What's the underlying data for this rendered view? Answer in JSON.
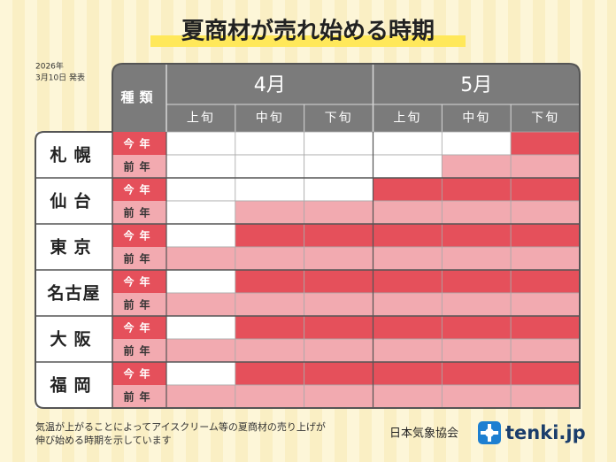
{
  "header": {
    "title": "夏商材が売れ始める時期",
    "date_line1": "2026年",
    "date_line2": "3月10日 発表"
  },
  "table": {
    "type_header": "種類",
    "months": [
      {
        "label": "4月",
        "periods": [
          "上旬",
          "中旬",
          "下旬"
        ]
      },
      {
        "label": "5月",
        "periods": [
          "上旬",
          "中旬",
          "下旬"
        ]
      }
    ],
    "rows": [
      {
        "city": "札幌",
        "this_year": {
          "label": "今年",
          "cells": [
            "#ffffff",
            "#ffffff",
            "#ffffff",
            "#ffffff",
            "#ffffff",
            "#e5505b"
          ]
        },
        "last_year": {
          "label": "前年",
          "cells": [
            "#ffffff",
            "#ffffff",
            "#ffffff",
            "#ffffff",
            "#f2aab0",
            "#f2aab0"
          ]
        }
      },
      {
        "city": "仙台",
        "this_year": {
          "label": "今年",
          "cells": [
            "#ffffff",
            "#ffffff",
            "#ffffff",
            "#e5505b",
            "#e5505b",
            "#e5505b"
          ]
        },
        "last_year": {
          "label": "前年",
          "cells": [
            "#ffffff",
            "#f2aab0",
            "#f2aab0",
            "#f2aab0",
            "#f2aab0",
            "#f2aab0"
          ]
        }
      },
      {
        "city": "東京",
        "this_year": {
          "label": "今年",
          "cells": [
            "#ffffff",
            "#e5505b",
            "#e5505b",
            "#e5505b",
            "#e5505b",
            "#e5505b"
          ]
        },
        "last_year": {
          "label": "前年",
          "cells": [
            "#f2aab0",
            "#f2aab0",
            "#f2aab0",
            "#f2aab0",
            "#f2aab0",
            "#f2aab0"
          ]
        }
      },
      {
        "city": "名古屋",
        "this_year": {
          "label": "今年",
          "cells": [
            "#ffffff",
            "#e5505b",
            "#e5505b",
            "#e5505b",
            "#e5505b",
            "#e5505b"
          ]
        },
        "last_year": {
          "label": "前年",
          "cells": [
            "#f2aab0",
            "#f2aab0",
            "#f2aab0",
            "#f2aab0",
            "#f2aab0",
            "#f2aab0"
          ]
        }
      },
      {
        "city": "大阪",
        "this_year": {
          "label": "今年",
          "cells": [
            "#ffffff",
            "#e5505b",
            "#e5505b",
            "#e5505b",
            "#e5505b",
            "#e5505b"
          ]
        },
        "last_year": {
          "label": "前年",
          "cells": [
            "#f2aab0",
            "#f2aab0",
            "#f2aab0",
            "#f2aab0",
            "#f2aab0",
            "#f2aab0"
          ]
        }
      },
      {
        "city": "福岡",
        "this_year": {
          "label": "今年",
          "cells": [
            "#ffffff",
            "#e5505b",
            "#e5505b",
            "#e5505b",
            "#e5505b",
            "#e5505b"
          ]
        },
        "last_year": {
          "label": "前年",
          "cells": [
            "#f2aab0",
            "#f2aab0",
            "#f2aab0",
            "#f2aab0",
            "#f2aab0",
            "#f2aab0"
          ]
        }
      }
    ]
  },
  "footer": {
    "note_lines": [
      "気温が上がることによってアイスクリーム等の夏商材の売り上げが",
      "伸び始める時期を示しています"
    ],
    "organization": "日本気象協会",
    "logo": "tenki.jp"
  }
}
